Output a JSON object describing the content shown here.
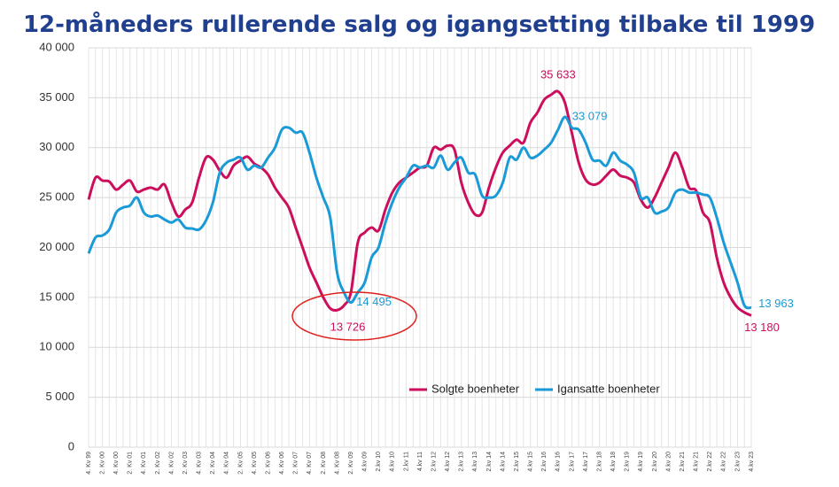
{
  "chart_data": {
    "type": "line",
    "title": "12-måneders rullerende salg og igangsetting tilbake til 1999",
    "categories": [
      "4. Kv 99",
      null,
      "2. Kv 00",
      null,
      "4. Kv 00",
      null,
      "2. Kv 01",
      null,
      "4. Kv 01",
      null,
      "2. Kv 02",
      null,
      "4. Kv 02",
      null,
      "2. Kv 03",
      null,
      "4. Kv 03",
      null,
      "2. Kv 04",
      null,
      "4. Kv 04",
      null,
      "2. Kv 05",
      null,
      "4. Kv 05",
      null,
      "2. Kv 06",
      null,
      "4. Kv 06",
      null,
      "2. Kv 07",
      null,
      "4. Kv 07",
      null,
      "2. Kv 08",
      null,
      "4. Kv 08",
      null,
      "2. Kv 09",
      null,
      "4.kv 09",
      null,
      "2.kv 10",
      null,
      "4.kv 10",
      null,
      "2.kv 11",
      null,
      "4.kv 11",
      null,
      "2.kv 12",
      null,
      "4.kv 12",
      null,
      "2.kv 13",
      null,
      "4.kv 13",
      null,
      "2.kv 14",
      null,
      "4.kv 14",
      null,
      "2.kv 15",
      null,
      "4.kv 15",
      null,
      "2.kv 16",
      null,
      "4.kv 16",
      null,
      "2.kv 17",
      null,
      "4.kv 17",
      null,
      "2.kv 18",
      null,
      "4.kv 18",
      null,
      "2.kv 19",
      null,
      "4.kv 19",
      null,
      "2.kv 20",
      null,
      "4.kv 20",
      null,
      "2.kv 21",
      null,
      "4.kv 21",
      null,
      "2.kv 22",
      null,
      "4.kv 22",
      null,
      "2.kv 23",
      null,
      "4.kv 23"
    ],
    "series": [
      {
        "name": "Solgte boenheter",
        "color": "#cc0e5c",
        "values": [
          24800,
          27000,
          26700,
          26600,
          25800,
          26300,
          26700,
          25600,
          25800,
          26000,
          25800,
          26300,
          24500,
          23100,
          23800,
          24500,
          27000,
          29000,
          28800,
          27700,
          27000,
          28200,
          28700,
          29100,
          28400,
          28000,
          27300,
          26000,
          25000,
          24000,
          22000,
          20000,
          18000,
          16500,
          15000,
          13900,
          13726,
          14200,
          15500,
          20500,
          21500,
          22000,
          21700,
          23800,
          25500,
          26500,
          27000,
          27500,
          28000,
          28200,
          30000,
          29800,
          30200,
          29800,
          26500,
          24500,
          23300,
          23500,
          26000,
          28000,
          29500,
          30200,
          30800,
          30500,
          32500,
          33500,
          34800,
          35300,
          35633,
          34500,
          31500,
          28500,
          26800,
          26300,
          26500,
          27200,
          27800,
          27200,
          27000,
          26500,
          24800,
          24000,
          25000,
          26500,
          28000,
          29500,
          28000,
          26000,
          25700,
          23500,
          22500,
          19000,
          16500,
          15000,
          14000,
          13500,
          13180
        ],
        "value_labels": [
          null,
          null,
          null,
          null,
          null,
          null,
          null,
          null,
          null,
          null,
          null,
          null,
          null,
          null,
          null,
          null,
          null,
          null,
          null,
          null,
          null,
          null,
          null,
          null,
          null,
          null,
          null,
          null,
          null,
          null,
          null,
          null,
          null,
          null,
          null,
          null,
          "13 726",
          null,
          null,
          null,
          null,
          null,
          null,
          null,
          null,
          null,
          null,
          null,
          null,
          null,
          null,
          null,
          null,
          null,
          null,
          null,
          null,
          null,
          null,
          null,
          null,
          null,
          null,
          null,
          null,
          null,
          null,
          null,
          "35 633",
          null,
          null,
          null,
          null,
          null,
          null,
          null,
          null,
          null,
          null,
          null,
          null,
          null,
          null,
          null,
          null,
          null,
          null,
          null,
          null,
          null,
          null,
          null,
          null,
          null,
          null,
          null,
          "13 180"
        ]
      },
      {
        "name": "Igansatte boenheter",
        "color": "#1a9ad6",
        "values": [
          19400,
          21000,
          21200,
          21800,
          23500,
          24000,
          24200,
          25000,
          23500,
          23100,
          23200,
          22800,
          22500,
          22800,
          22000,
          21900,
          21800,
          22700,
          24500,
          27500,
          28500,
          28800,
          29000,
          27800,
          28200,
          28000,
          29000,
          30000,
          31800,
          32000,
          31500,
          31500,
          29500,
          27000,
          25000,
          23000,
          17500,
          15500,
          14495,
          15500,
          16500,
          19000,
          20000,
          22500,
          24500,
          26000,
          27000,
          28200,
          28000,
          28200,
          28000,
          29200,
          27800,
          28500,
          29000,
          27500,
          27300,
          25200,
          25000,
          25200,
          26500,
          29000,
          28800,
          30000,
          29000,
          29200,
          29800,
          30500,
          31800,
          33079,
          32000,
          31800,
          30500,
          28800,
          28700,
          28200,
          29500,
          28700,
          28300,
          27500,
          25000,
          25000,
          23500,
          23600,
          24000,
          25500,
          25800,
          25500,
          25500,
          25300,
          25000,
          23000,
          20500,
          18500,
          16500,
          14200,
          13963
        ],
        "value_labels": [
          null,
          null,
          null,
          null,
          null,
          null,
          null,
          null,
          null,
          null,
          null,
          null,
          null,
          null,
          null,
          null,
          null,
          null,
          null,
          null,
          null,
          null,
          null,
          null,
          null,
          null,
          null,
          null,
          null,
          null,
          null,
          null,
          null,
          null,
          null,
          null,
          null,
          null,
          "14 495",
          null,
          null,
          null,
          null,
          null,
          null,
          null,
          null,
          null,
          null,
          null,
          null,
          null,
          null,
          null,
          null,
          null,
          null,
          null,
          null,
          null,
          null,
          null,
          null,
          null,
          null,
          null,
          null,
          null,
          null,
          "33 079",
          null,
          null,
          null,
          null,
          null,
          null,
          null,
          null,
          null,
          null,
          null,
          null,
          null,
          null,
          null,
          null,
          null,
          null,
          null,
          null,
          null,
          null,
          null,
          null,
          null,
          null,
          "13 963"
        ]
      }
    ],
    "ylim": [
      0,
      40000
    ],
    "yticks": [
      0,
      {
        "value": 5000,
        "label": "5 000"
      },
      {
        "value": 10000,
        "label": "10 000"
      },
      {
        "value": 15000,
        "label": "15 000"
      },
      {
        "value": 20000,
        "label": "20 000"
      },
      {
        "value": 25000,
        "label": "25 000"
      },
      {
        "value": 30000,
        "label": "30 000"
      },
      {
        "value": 35000,
        "label": "35 000"
      },
      {
        "value": 40000,
        "label": "40 000"
      }
    ],
    "grid": true
  }
}
